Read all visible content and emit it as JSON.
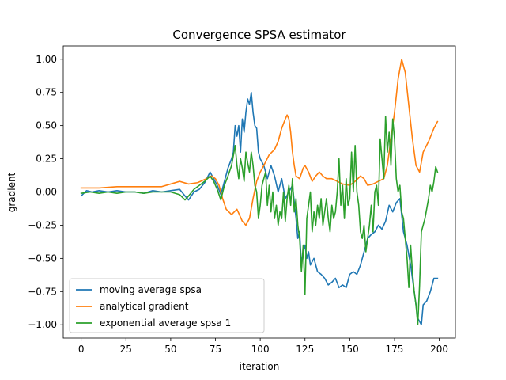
{
  "chart_data": {
    "type": "line",
    "title": "Convergence SPSA estimator",
    "xlabel": "iteration",
    "ylabel": "gradient",
    "xlim": [
      -10,
      209
    ],
    "ylim": [
      -1.1,
      1.1
    ],
    "xticks": [
      0,
      25,
      50,
      75,
      100,
      125,
      150,
      175,
      200
    ],
    "yticks": [
      -1.0,
      -0.75,
      -0.5,
      -0.25,
      0.0,
      0.25,
      0.5,
      0.75,
      1.0
    ],
    "xtick_labels": [
      "0",
      "25",
      "50",
      "75",
      "100",
      "125",
      "150",
      "175",
      "200"
    ],
    "ytick_labels": [
      "−1.00",
      "−0.75",
      "−0.50",
      "−0.25",
      "0.00",
      "0.25",
      "0.50",
      "0.75",
      "1.00"
    ],
    "grid": false,
    "legend_position": "lower-left",
    "series": [
      {
        "name": "moving average spsa",
        "color": "#1f77b4",
        "points": [
          [
            0,
            -0.03
          ],
          [
            3,
            0.01
          ],
          [
            6,
            0.0
          ],
          [
            10,
            0.01
          ],
          [
            15,
            0.0
          ],
          [
            20,
            0.01
          ],
          [
            25,
            0.0
          ],
          [
            30,
            0.0
          ],
          [
            35,
            -0.01
          ],
          [
            40,
            0.01
          ],
          [
            45,
            0.0
          ],
          [
            50,
            0.01
          ],
          [
            55,
            0.02
          ],
          [
            58,
            -0.03
          ],
          [
            60,
            -0.06
          ],
          [
            63,
            0.0
          ],
          [
            66,
            0.02
          ],
          [
            69,
            0.07
          ],
          [
            72,
            0.15
          ],
          [
            74,
            0.1
          ],
          [
            76,
            0.05
          ],
          [
            78,
            -0.02
          ],
          [
            80,
            0.08
          ],
          [
            82,
            0.18
          ],
          [
            84,
            0.25
          ],
          [
            85,
            0.3
          ],
          [
            86,
            0.5
          ],
          [
            87,
            0.42
          ],
          [
            88,
            0.5
          ],
          [
            89,
            0.3
          ],
          [
            90,
            0.55
          ],
          [
            91,
            0.45
          ],
          [
            92,
            0.6
          ],
          [
            93,
            0.7
          ],
          [
            94,
            0.66
          ],
          [
            95,
            0.75
          ],
          [
            96,
            0.6
          ],
          [
            97,
            0.5
          ],
          [
            98,
            0.48
          ],
          [
            99,
            0.3
          ],
          [
            100,
            0.25
          ],
          [
            102,
            0.2
          ],
          [
            104,
            0.1
          ],
          [
            106,
            0.2
          ],
          [
            108,
            0.12
          ],
          [
            110,
            0.0
          ],
          [
            112,
            0.1
          ],
          [
            114,
            -0.05
          ],
          [
            116,
            0.0
          ],
          [
            118,
            0.05
          ],
          [
            120,
            -0.2
          ],
          [
            121,
            -0.35
          ],
          [
            122,
            -0.3
          ],
          [
            123,
            -0.55
          ],
          [
            124,
            -0.45
          ],
          [
            125,
            -0.4
          ],
          [
            126,
            -0.5
          ],
          [
            127,
            -0.45
          ],
          [
            128,
            -0.55
          ],
          [
            130,
            -0.5
          ],
          [
            132,
            -0.6
          ],
          [
            134,
            -0.62
          ],
          [
            136,
            -0.65
          ],
          [
            138,
            -0.7
          ],
          [
            140,
            -0.68
          ],
          [
            142,
            -0.65
          ],
          [
            144,
            -0.72
          ],
          [
            146,
            -0.7
          ],
          [
            148,
            -0.72
          ],
          [
            150,
            -0.62
          ],
          [
            152,
            -0.6
          ],
          [
            154,
            -0.62
          ],
          [
            156,
            -0.55
          ],
          [
            158,
            -0.45
          ],
          [
            160,
            -0.35
          ],
          [
            162,
            -0.32
          ],
          [
            164,
            -0.3
          ],
          [
            166,
            -0.25
          ],
          [
            168,
            -0.28
          ],
          [
            170,
            -0.22
          ],
          [
            172,
            -0.1
          ],
          [
            174,
            -0.15
          ],
          [
            176,
            -0.08
          ],
          [
            178,
            -0.05
          ],
          [
            180,
            -0.3
          ],
          [
            182,
            -0.4
          ],
          [
            184,
            -0.55
          ],
          [
            186,
            -0.75
          ],
          [
            188,
            -0.95
          ],
          [
            190,
            -1.0
          ],
          [
            191,
            -0.85
          ],
          [
            193,
            -0.82
          ],
          [
            195,
            -0.75
          ],
          [
            197,
            -0.65
          ],
          [
            199,
            -0.65
          ]
        ]
      },
      {
        "name": "analytical gradient",
        "color": "#ff7f0e",
        "points": [
          [
            0,
            0.03
          ],
          [
            10,
            0.03
          ],
          [
            20,
            0.04
          ],
          [
            30,
            0.04
          ],
          [
            40,
            0.04
          ],
          [
            45,
            0.04
          ],
          [
            50,
            0.06
          ],
          [
            55,
            0.08
          ],
          [
            60,
            0.06
          ],
          [
            65,
            0.07
          ],
          [
            70,
            0.1
          ],
          [
            73,
            0.12
          ],
          [
            75,
            0.1
          ],
          [
            77,
            0.05
          ],
          [
            79,
            -0.05
          ],
          [
            81,
            -0.13
          ],
          [
            84,
            -0.17
          ],
          [
            87,
            -0.13
          ],
          [
            90,
            -0.22
          ],
          [
            92,
            -0.25
          ],
          [
            94,
            -0.2
          ],
          [
            96,
            -0.05
          ],
          [
            98,
            0.08
          ],
          [
            100,
            0.15
          ],
          [
            102,
            0.2
          ],
          [
            105,
            0.28
          ],
          [
            108,
            0.32
          ],
          [
            110,
            0.38
          ],
          [
            112,
            0.48
          ],
          [
            114,
            0.55
          ],
          [
            115,
            0.58
          ],
          [
            116,
            0.55
          ],
          [
            117,
            0.45
          ],
          [
            118,
            0.3
          ],
          [
            119,
            0.2
          ],
          [
            120,
            0.12
          ],
          [
            122,
            0.1
          ],
          [
            124,
            0.18
          ],
          [
            125,
            0.2
          ],
          [
            127,
            0.15
          ],
          [
            129,
            0.08
          ],
          [
            131,
            0.12
          ],
          [
            133,
            0.15
          ],
          [
            135,
            0.12
          ],
          [
            137,
            0.1
          ],
          [
            140,
            0.1
          ],
          [
            143,
            0.08
          ],
          [
            146,
            0.06
          ],
          [
            150,
            0.05
          ],
          [
            153,
            0.08
          ],
          [
            156,
            0.12
          ],
          [
            158,
            0.1
          ],
          [
            160,
            0.05
          ],
          [
            163,
            0.06
          ],
          [
            166,
            0.08
          ],
          [
            169,
            0.1
          ],
          [
            171,
            0.2
          ],
          [
            173,
            0.4
          ],
          [
            175,
            0.6
          ],
          [
            177,
            0.85
          ],
          [
            179,
            1.0
          ],
          [
            181,
            0.9
          ],
          [
            183,
            0.65
          ],
          [
            185,
            0.4
          ],
          [
            187,
            0.2
          ],
          [
            189,
            0.15
          ],
          [
            191,
            0.3
          ],
          [
            194,
            0.38
          ],
          [
            197,
            0.48
          ],
          [
            199,
            0.53
          ]
        ]
      },
      {
        "name": "exponential average spsa 1",
        "color": "#2ca02c",
        "points": [
          [
            0,
            -0.01
          ],
          [
            5,
            0.0
          ],
          [
            10,
            -0.01
          ],
          [
            15,
            0.0
          ],
          [
            20,
            -0.01
          ],
          [
            25,
            0.0
          ],
          [
            30,
            0.0
          ],
          [
            35,
            -0.01
          ],
          [
            40,
            0.0
          ],
          [
            45,
            0.0
          ],
          [
            50,
            0.0
          ],
          [
            55,
            -0.02
          ],
          [
            58,
            -0.06
          ],
          [
            60,
            -0.03
          ],
          [
            63,
            0.02
          ],
          [
            66,
            0.05
          ],
          [
            69,
            0.08
          ],
          [
            72,
            0.12
          ],
          [
            74,
            0.08
          ],
          [
            76,
            0.02
          ],
          [
            78,
            -0.06
          ],
          [
            80,
            0.05
          ],
          [
            82,
            0.12
          ],
          [
            84,
            0.2
          ],
          [
            86,
            0.35
          ],
          [
            87,
            0.2
          ],
          [
            88,
            0.1
          ],
          [
            89,
            0.25
          ],
          [
            90,
            0.18
          ],
          [
            91,
            0.08
          ],
          [
            92,
            0.3
          ],
          [
            93,
            0.22
          ],
          [
            94,
            0.15
          ],
          [
            95,
            0.3
          ],
          [
            96,
            0.2
          ],
          [
            97,
            0.05
          ],
          [
            98,
            0.0
          ],
          [
            99,
            -0.2
          ],
          [
            100,
            -0.1
          ],
          [
            101,
            0.05
          ],
          [
            102,
            0.1
          ],
          [
            103,
            0.15
          ],
          [
            104,
            -0.1
          ],
          [
            105,
            0.05
          ],
          [
            106,
            -0.15
          ],
          [
            107,
            0.0
          ],
          [
            108,
            -0.2
          ],
          [
            109,
            -0.1
          ],
          [
            110,
            -0.25
          ],
          [
            111,
            -0.15
          ],
          [
            112,
            -0.2
          ],
          [
            113,
            0.0
          ],
          [
            114,
            -0.22
          ],
          [
            115,
            -0.05
          ],
          [
            116,
            0.05
          ],
          [
            117,
            -0.1
          ],
          [
            118,
            0.1
          ],
          [
            119,
            -0.15
          ],
          [
            120,
            -0.05
          ],
          [
            121,
            -0.25
          ],
          [
            122,
            -0.35
          ],
          [
            123,
            -0.6
          ],
          [
            124,
            -0.4
          ],
          [
            125,
            -0.77
          ],
          [
            126,
            -0.2
          ],
          [
            127,
            -0.1
          ],
          [
            128,
            0.0
          ],
          [
            129,
            -0.3
          ],
          [
            130,
            -0.15
          ],
          [
            131,
            -0.25
          ],
          [
            132,
            -0.1
          ],
          [
            133,
            -0.2
          ],
          [
            134,
            -0.05
          ],
          [
            135,
            -0.25
          ],
          [
            136,
            -0.15
          ],
          [
            137,
            -0.05
          ],
          [
            138,
            -0.2
          ],
          [
            139,
            -0.3
          ],
          [
            140,
            -0.1
          ],
          [
            141,
            -0.2
          ],
          [
            142,
            -0.15
          ],
          [
            143,
            0.0
          ],
          [
            144,
            0.25
          ],
          [
            145,
            -0.1
          ],
          [
            146,
            0.05
          ],
          [
            147,
            -0.2
          ],
          [
            148,
            0.1
          ],
          [
            149,
            -0.1
          ],
          [
            150,
            -0.05
          ],
          [
            151,
            0.3
          ],
          [
            152,
            0.0
          ],
          [
            153,
            0.35
          ],
          [
            154,
            0.0
          ],
          [
            155,
            -0.1
          ],
          [
            156,
            -0.3
          ],
          [
            157,
            -0.35
          ],
          [
            158,
            -0.25
          ],
          [
            159,
            -0.45
          ],
          [
            160,
            -0.35
          ],
          [
            161,
            -0.25
          ],
          [
            162,
            -0.1
          ],
          [
            163,
            -0.3
          ],
          [
            164,
            0.0
          ],
          [
            165,
            0.05
          ],
          [
            166,
            -0.1
          ],
          [
            167,
            0.4
          ],
          [
            168,
            0.25
          ],
          [
            169,
            0.1
          ],
          [
            170,
            0.57
          ],
          [
            171,
            0.3
          ],
          [
            172,
            0.45
          ],
          [
            173,
            0.2
          ],
          [
            174,
            0.55
          ],
          [
            175,
            0.4
          ],
          [
            176,
            0.1
          ],
          [
            177,
            0.0
          ],
          [
            178,
            0.05
          ],
          [
            179,
            -0.15
          ],
          [
            180,
            -0.2
          ],
          [
            181,
            -0.35
          ],
          [
            182,
            -0.5
          ],
          [
            183,
            -0.72
          ],
          [
            184,
            -0.4
          ],
          [
            185,
            -0.6
          ],
          [
            186,
            -0.75
          ],
          [
            187,
            -0.85
          ],
          [
            188,
            -1.0
          ],
          [
            189,
            -0.7
          ],
          [
            190,
            -0.3
          ],
          [
            192,
            -0.2
          ],
          [
            194,
            -0.05
          ],
          [
            195,
            0.05
          ],
          [
            196,
            0.0
          ],
          [
            197,
            0.08
          ],
          [
            198,
            0.19
          ],
          [
            199,
            0.15
          ]
        ]
      }
    ]
  }
}
